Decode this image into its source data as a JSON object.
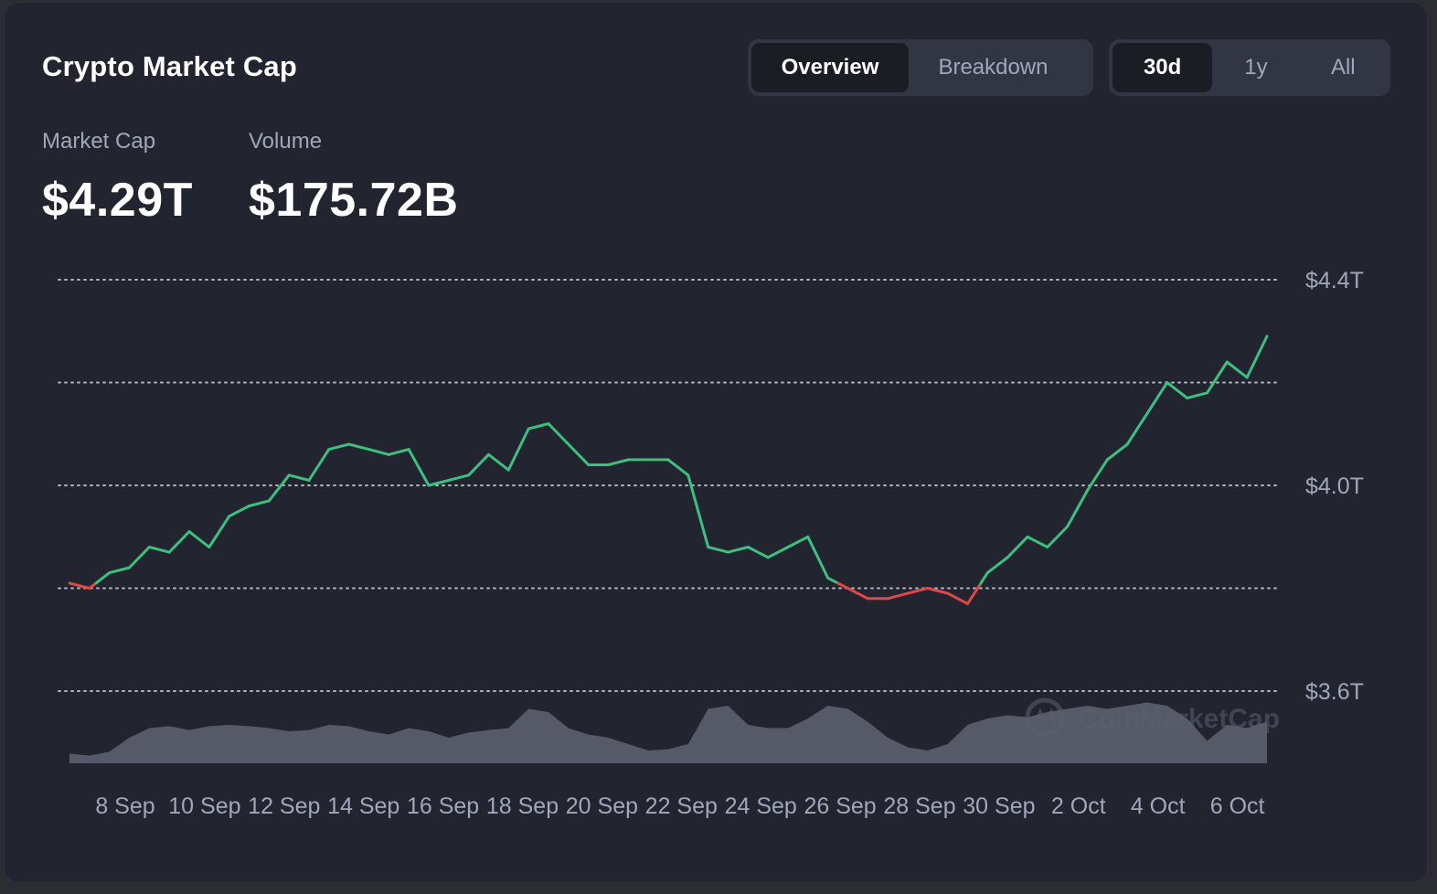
{
  "header": {
    "title": "Crypto Market Cap",
    "view_tabs": [
      {
        "label": "Overview",
        "active": true
      },
      {
        "label": "Breakdown",
        "active": false
      }
    ],
    "range_tabs": [
      {
        "label": "30d",
        "active": true
      },
      {
        "label": "1y",
        "active": false
      },
      {
        "label": "All",
        "active": false
      }
    ]
  },
  "stats": {
    "market_cap_label": "Market Cap",
    "market_cap_value": "$4.29T",
    "volume_label": "Volume",
    "volume_value": "$175.72B"
  },
  "watermark": "CoinMarketCap",
  "colors": {
    "up": "#3fbf7f",
    "down": "#e04848",
    "volume": "#5a5d6b",
    "grid": "#c8ccd6",
    "background": "#222530"
  },
  "chart_data": {
    "type": "line",
    "title": "",
    "xlabel": "",
    "ylabel": "",
    "ylim": [
      3.6,
      4.4
    ],
    "y_unit": "T USD",
    "y_ticks": [
      {
        "value": 4.4,
        "label": "$4.4T"
      },
      {
        "value": 4.2,
        "label": ""
      },
      {
        "value": 4.0,
        "label": "$4.0T"
      },
      {
        "value": 3.8,
        "label": ""
      },
      {
        "value": 3.6,
        "label": "$3.6T"
      }
    ],
    "x_ticks": [
      "8 Sep",
      "10 Sep",
      "12 Sep",
      "14 Sep",
      "16 Sep",
      "18 Sep",
      "20 Sep",
      "22 Sep",
      "24 Sep",
      "26 Sep",
      "28 Sep",
      "30 Sep",
      "2 Oct",
      "4 Oct",
      "6 Oct"
    ],
    "xlim": [
      "2025-09-06T12:00",
      "2025-10-06T12:00"
    ],
    "baseline": 3.81,
    "grid": true,
    "series": [
      {
        "type": "line",
        "x": [
          "2025-09-06T12:00",
          "2025-09-07T00:00",
          "2025-09-07T12:00",
          "2025-09-08T00:00",
          "2025-09-08T12:00",
          "2025-09-09T00:00",
          "2025-09-09T12:00",
          "2025-09-10T00:00",
          "2025-09-10T12:00",
          "2025-09-11T00:00",
          "2025-09-11T12:00",
          "2025-09-12T00:00",
          "2025-09-12T12:00",
          "2025-09-13T00:00",
          "2025-09-13T12:00",
          "2025-09-14T00:00",
          "2025-09-14T12:00",
          "2025-09-15T00:00",
          "2025-09-15T12:00",
          "2025-09-16T00:00",
          "2025-09-16T12:00",
          "2025-09-17T00:00",
          "2025-09-17T12:00",
          "2025-09-18T00:00",
          "2025-09-18T12:00",
          "2025-09-19T00:00",
          "2025-09-19T12:00",
          "2025-09-20T00:00",
          "2025-09-20T12:00",
          "2025-09-21T00:00",
          "2025-09-21T12:00",
          "2025-09-22T00:00",
          "2025-09-22T12:00",
          "2025-09-23T00:00",
          "2025-09-23T12:00",
          "2025-09-24T00:00",
          "2025-09-24T12:00",
          "2025-09-25T00:00",
          "2025-09-25T12:00",
          "2025-09-26T00:00",
          "2025-09-26T12:00",
          "2025-09-27T00:00",
          "2025-09-27T12:00",
          "2025-09-28T00:00",
          "2025-09-28T12:00",
          "2025-09-29T00:00",
          "2025-09-29T12:00",
          "2025-09-30T00:00",
          "2025-09-30T12:00",
          "2025-10-01T00:00",
          "2025-10-01T12:00",
          "2025-10-02T00:00",
          "2025-10-02T12:00",
          "2025-10-03T00:00",
          "2025-10-03T12:00",
          "2025-10-04T00:00",
          "2025-10-04T12:00",
          "2025-10-05T00:00",
          "2025-10-05T12:00",
          "2025-10-06T00:00",
          "2025-10-06T12:00"
        ],
        "values": [
          3.81,
          3.8,
          3.83,
          3.84,
          3.88,
          3.87,
          3.91,
          3.88,
          3.94,
          3.96,
          3.97,
          4.02,
          4.01,
          4.07,
          4.08,
          4.07,
          4.06,
          4.07,
          4.0,
          4.01,
          4.02,
          4.06,
          4.03,
          4.11,
          4.12,
          4.08,
          4.04,
          4.04,
          4.05,
          4.05,
          4.05,
          4.02,
          3.88,
          3.87,
          3.88,
          3.86,
          3.88,
          3.9,
          3.82,
          3.8,
          3.78,
          3.78,
          3.79,
          3.8,
          3.79,
          3.77,
          3.83,
          3.86,
          3.9,
          3.88,
          3.92,
          3.99,
          4.05,
          4.08,
          4.14,
          4.2,
          4.17,
          4.18,
          4.24,
          4.21,
          4.29
        ]
      },
      {
        "type": "area",
        "name": "",
        "x": [
          "2025-09-06T12:00",
          "2025-09-07T00:00",
          "2025-09-07T12:00",
          "2025-09-08T00:00",
          "2025-09-08T12:00",
          "2025-09-09T00:00",
          "2025-09-09T12:00",
          "2025-09-10T00:00",
          "2025-09-10T12:00",
          "2025-09-11T00:00",
          "2025-09-11T12:00",
          "2025-09-12T00:00",
          "2025-09-12T12:00",
          "2025-09-13T00:00",
          "2025-09-13T12:00",
          "2025-09-14T00:00",
          "2025-09-14T12:00",
          "2025-09-15T00:00",
          "2025-09-15T12:00",
          "2025-09-16T00:00",
          "2025-09-16T12:00",
          "2025-09-17T00:00",
          "2025-09-17T12:00",
          "2025-09-18T00:00",
          "2025-09-18T12:00",
          "2025-09-19T00:00",
          "2025-09-19T12:00",
          "2025-09-20T00:00",
          "2025-09-20T12:00",
          "2025-09-21T00:00",
          "2025-09-21T12:00",
          "2025-09-22T00:00",
          "2025-09-22T12:00",
          "2025-09-23T00:00",
          "2025-09-23T12:00",
          "2025-09-24T00:00",
          "2025-09-24T12:00",
          "2025-09-25T00:00",
          "2025-09-25T12:00",
          "2025-09-26T00:00",
          "2025-09-26T12:00",
          "2025-09-27T00:00",
          "2025-09-27T12:00",
          "2025-09-28T00:00",
          "2025-09-28T12:00",
          "2025-09-29T00:00",
          "2025-09-29T12:00",
          "2025-09-30T00:00",
          "2025-09-30T12:00",
          "2025-10-01T00:00",
          "2025-10-01T12:00",
          "2025-10-02T00:00",
          "2025-10-02T12:00",
          "2025-10-03T00:00",
          "2025-10-03T12:00",
          "2025-10-04T00:00",
          "2025-10-04T12:00",
          "2025-10-05T00:00",
          "2025-10-05T12:00",
          "2025-10-06T00:00",
          "2025-10-06T12:00"
        ],
        "relative_values": [
          0.15,
          0.12,
          0.18,
          0.4,
          0.55,
          0.58,
          0.52,
          0.58,
          0.6,
          0.58,
          0.55,
          0.5,
          0.52,
          0.6,
          0.58,
          0.5,
          0.45,
          0.55,
          0.5,
          0.4,
          0.48,
          0.52,
          0.55,
          0.85,
          0.8,
          0.55,
          0.45,
          0.4,
          0.3,
          0.2,
          0.22,
          0.3,
          0.85,
          0.9,
          0.6,
          0.55,
          0.55,
          0.7,
          0.9,
          0.85,
          0.65,
          0.4,
          0.25,
          0.2,
          0.3,
          0.6,
          0.7,
          0.75,
          0.72,
          0.8,
          0.85,
          0.9,
          0.85,
          0.9,
          0.95,
          0.9,
          0.7,
          0.35,
          0.6,
          0.55,
          0.65
        ]
      }
    ]
  }
}
